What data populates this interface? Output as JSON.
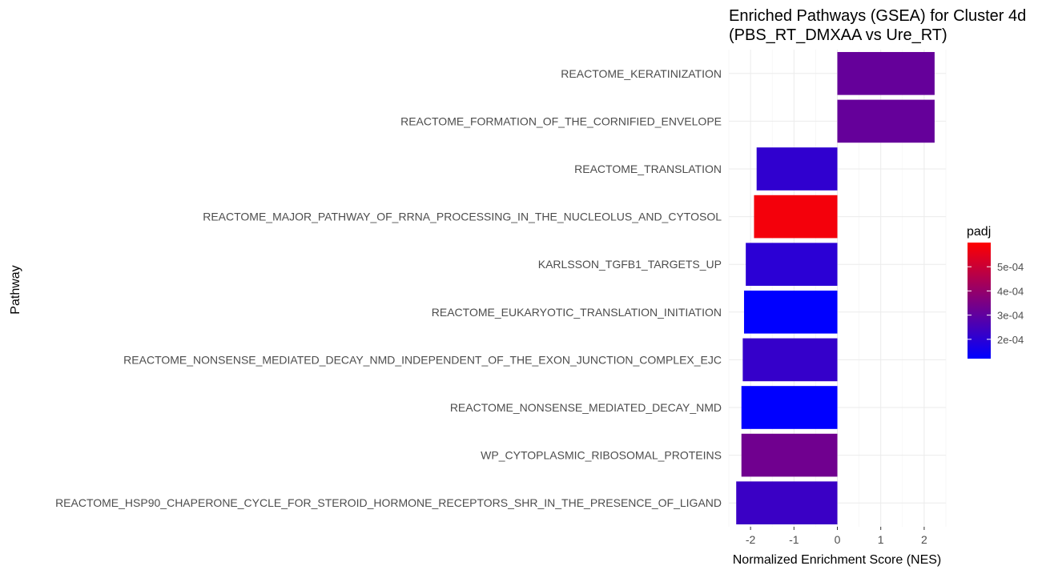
{
  "chart_data": {
    "type": "bar",
    "orientation": "horizontal",
    "title_lines": [
      "Enriched Pathways (GSEA) for Cluster 4d",
      "(PBS_RT_DMXAA vs Ure_RT)"
    ],
    "xlabel": "Normalized Enrichment Score (NES)",
    "ylabel": "Pathway",
    "xlim": [
      -2.5,
      2.5
    ],
    "xticks": [
      -2,
      -1,
      0,
      1,
      2
    ],
    "xtick_labels": [
      "-2",
      "-1",
      "0",
      "1",
      "2"
    ],
    "grid": true,
    "categories": [
      "REACTOME_KERATINIZATION",
      "REACTOME_FORMATION_OF_THE_CORNIFIED_ENVELOPE",
      "REACTOME_TRANSLATION",
      "REACTOME_MAJOR_PATHWAY_OF_RRNA_PROCESSING_IN_THE_NUCLEOLUS_AND_CYTOSOL",
      "KARLSSON_TGFB1_TARGETS_UP",
      "REACTOME_EUKARYOTIC_TRANSLATION_INITIATION",
      "REACTOME_NONSENSE_MEDIATED_DECAY_NMD_INDEPENDENT_OF_THE_EXON_JUNCTION_COMPLEX_EJC",
      "REACTOME_NONSENSE_MEDIATED_DECAY_NMD",
      "WP_CYTOPLASMIC_RIBOSOMAL_PROTEINS",
      "REACTOME_HSP90_CHAPERONE_CYCLE_FOR_STEROID_HORMONE_RECEPTORS_SHR_IN_THE_PRESENCE_OF_LIGAND"
    ],
    "values": [
      2.24,
      2.24,
      -1.86,
      -1.92,
      -2.11,
      -2.15,
      -2.18,
      -2.21,
      -2.21,
      -2.33
    ],
    "padj": [
      0.00031,
      0.00031,
      0.00021,
      0.00058,
      0.0002,
      0.00012,
      0.00022,
      0.00012,
      0.00033,
      0.00023
    ],
    "legend": {
      "title": "padj",
      "position": "right",
      "range": [
        0.00012,
        0.0006
      ],
      "ticks": [
        0.0002,
        0.0003,
        0.0004,
        0.0005
      ],
      "tick_labels": [
        "2e-04",
        "3e-04",
        "4e-04",
        "5e-04"
      ],
      "low_color": "#0000ff",
      "high_color": "#ff0000"
    }
  }
}
